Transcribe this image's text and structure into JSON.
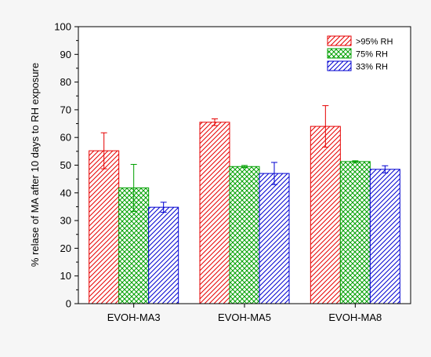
{
  "chart_data": {
    "type": "bar",
    "categories": [
      "EVOH-MA3",
      "EVOH-MA5",
      "EVOH-MA8"
    ],
    "series": [
      {
        "name": ">95% RH",
        "values": [
          55.2,
          65.5,
          64.0
        ],
        "errors": [
          6.5,
          1.2,
          7.5
        ],
        "color": "#e60000",
        "pattern": "diagonal-hatch"
      },
      {
        "name": "75% RH",
        "values": [
          41.8,
          49.5,
          51.3
        ],
        "errors": [
          8.5,
          0.4,
          0.3
        ],
        "color": "#00a000",
        "pattern": "crosshatch"
      },
      {
        "name": "33% RH",
        "values": [
          34.8,
          47.0,
          48.5
        ],
        "errors": [
          1.8,
          4.0,
          1.3
        ],
        "color": "#0000d0",
        "pattern": "diagonal-hatch"
      }
    ],
    "ylabel": "% relase of MA after 10 days to RH exposure",
    "ylim": [
      0,
      100
    ],
    "yticks": [
      0,
      10,
      20,
      30,
      40,
      50,
      60,
      70,
      80,
      90,
      100
    ],
    "legend_position": "top-right",
    "grid": false
  }
}
